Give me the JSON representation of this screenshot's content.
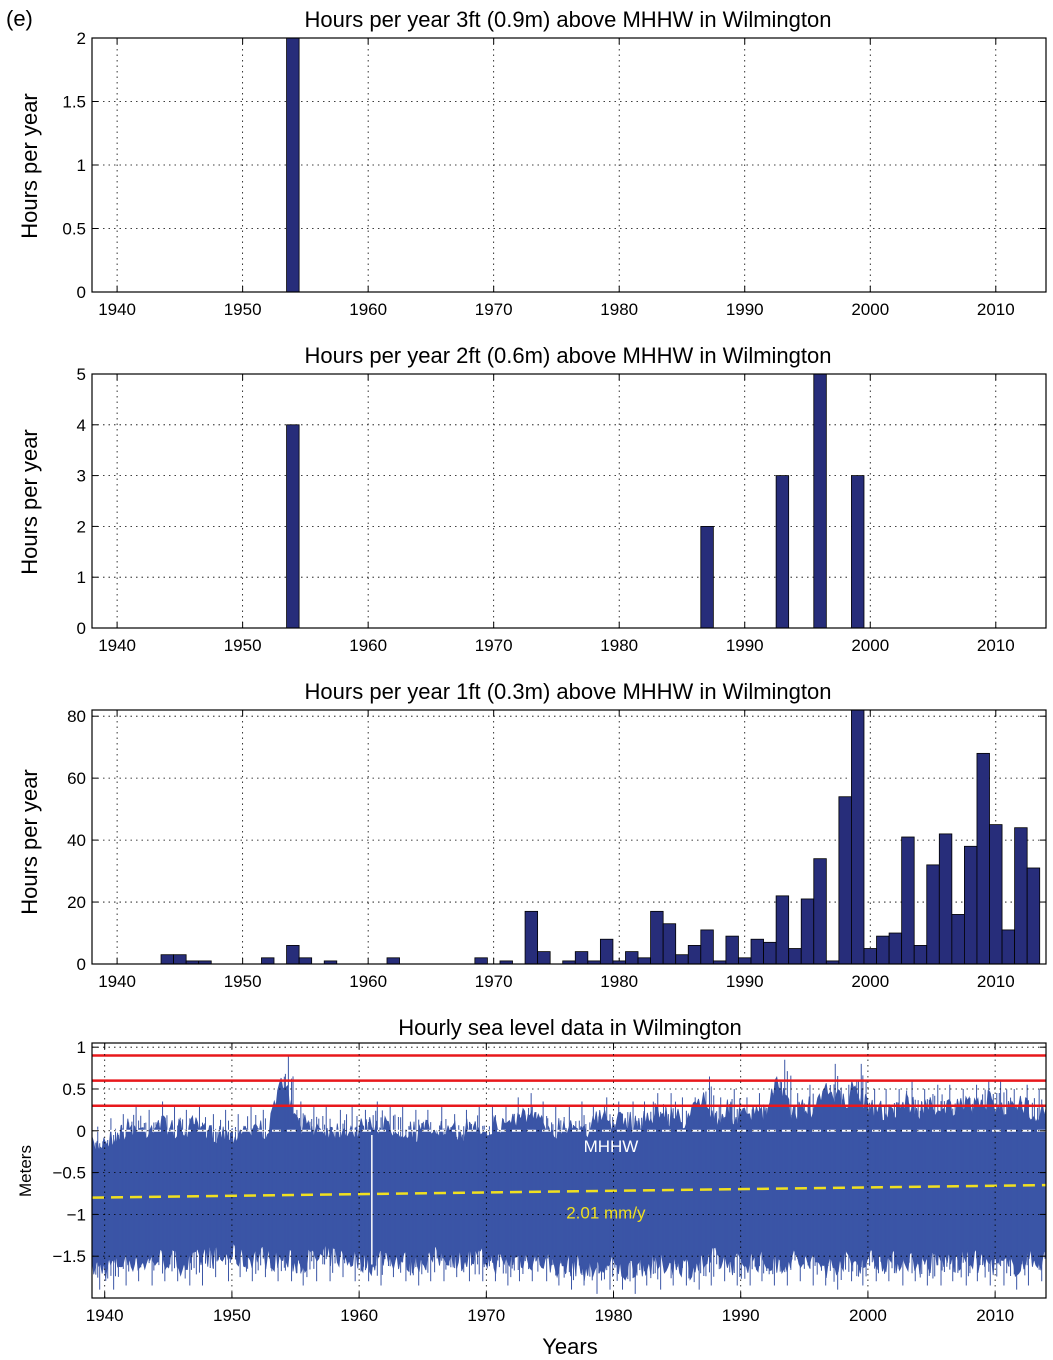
{
  "figure": {
    "panel_label": "(e)",
    "x_tick_labels": [
      "1940",
      "1950",
      "1960",
      "1970",
      "1980",
      "1990",
      "2000",
      "2010"
    ],
    "colors": {
      "bars": "#272d7a",
      "sea_level": "#3a55a6",
      "thresholds": "#e8181c",
      "mhhw_line": "#ffffff",
      "trend_line": "#f0e020"
    }
  },
  "chart_data": [
    {
      "type": "bar",
      "title": "Hours per year 3ft (0.9m) above MHHW in Wilmington",
      "xlabel": "",
      "ylabel": "Hours per year",
      "xlim": [
        1938,
        2014
      ],
      "ylim": [
        0,
        2
      ],
      "y_ticks": [
        0,
        0.5,
        1,
        1.5,
        2
      ],
      "y_tick_labels": [
        "0",
        "0.5",
        "1",
        "1.5",
        "2"
      ],
      "grid": true,
      "x": [
        1954
      ],
      "values": [
        2
      ]
    },
    {
      "type": "bar",
      "title": "Hours per year 2ft (0.6m) above MHHW in Wilmington",
      "xlabel": "",
      "ylabel": "Hours per year",
      "xlim": [
        1938,
        2014
      ],
      "ylim": [
        0,
        5
      ],
      "y_ticks": [
        0,
        1,
        2,
        3,
        4,
        5
      ],
      "y_tick_labels": [
        "0",
        "1",
        "2",
        "3",
        "4",
        "5"
      ],
      "grid": true,
      "x": [
        1954,
        1987,
        1993,
        1996,
        1999
      ],
      "values": [
        4,
        2,
        3,
        5,
        3
      ]
    },
    {
      "type": "bar",
      "title": "Hours per year 1ft (0.3m) above MHHW in Wilmington",
      "xlabel": "",
      "ylabel": "Hours per year",
      "xlim": [
        1938,
        2014
      ],
      "ylim": [
        0,
        82
      ],
      "y_ticks": [
        0,
        20,
        40,
        60,
        80
      ],
      "y_tick_labels": [
        "0",
        "20",
        "40",
        "60",
        "80"
      ],
      "grid": true,
      "x": [
        1944,
        1945,
        1946,
        1947,
        1952,
        1954,
        1955,
        1957,
        1962,
        1969,
        1971,
        1973,
        1974,
        1976,
        1977,
        1978,
        1979,
        1980,
        1981,
        1982,
        1983,
        1984,
        1985,
        1986,
        1987,
        1988,
        1989,
        1990,
        1991,
        1992,
        1993,
        1994,
        1995,
        1996,
        1997,
        1998,
        1999,
        2000,
        2001,
        2002,
        2003,
        2004,
        2005,
        2006,
        2007,
        2008,
        2009,
        2010,
        2011,
        2012,
        2013
      ],
      "values": [
        3,
        3,
        1,
        1,
        2,
        6,
        2,
        1,
        2,
        2,
        1,
        17,
        4,
        1,
        4,
        1,
        8,
        1,
        4,
        2,
        17,
        13,
        3,
        6,
        11,
        1,
        9,
        2,
        8,
        7,
        22,
        5,
        21,
        34,
        1,
        54,
        82,
        5,
        9,
        10,
        41,
        6,
        32,
        42,
        16,
        38,
        68,
        45,
        11,
        44,
        31
      ]
    },
    {
      "type": "area",
      "title": "Hourly sea level data in Wilmington",
      "xlabel": "Years",
      "ylabel": "Meters",
      "xlim": [
        1939,
        2014
      ],
      "ylim": [
        -2,
        1.05
      ],
      "y_ticks": [
        -1.5,
        -1,
        -0.5,
        0,
        0.5,
        1
      ],
      "y_tick_labels": [
        "−1.5",
        "−1",
        "−0.5",
        "0",
        "0.5",
        "1"
      ],
      "grid": true,
      "threshold_lines": [
        0.9,
        0.6,
        0.3
      ],
      "mhhw": {
        "value": 0,
        "label": "MHHW"
      },
      "trend": {
        "label": "2.01 mm/y",
        "y_start": -0.8,
        "y_end": -0.65
      },
      "envelope_annual": {
        "x": [
          1939,
          1940,
          1941,
          1942,
          1943,
          1944,
          1945,
          1946,
          1947,
          1948,
          1949,
          1950,
          1951,
          1952,
          1953,
          1954,
          1955,
          1956,
          1957,
          1958,
          1959,
          1960,
          1961,
          1962,
          1963,
          1964,
          1965,
          1966,
          1967,
          1968,
          1969,
          1970,
          1971,
          1972,
          1973,
          1974,
          1975,
          1976,
          1977,
          1978,
          1979,
          1980,
          1981,
          1982,
          1983,
          1984,
          1985,
          1986,
          1987,
          1988,
          1989,
          1990,
          1991,
          1992,
          1993,
          1994,
          1995,
          1996,
          1997,
          1998,
          1999,
          2000,
          2001,
          2002,
          2003,
          2004,
          2005,
          2006,
          2007,
          2008,
          2009,
          2010,
          2011,
          2012,
          2013
        ],
        "max": [
          0.05,
          0.15,
          0.2,
          0.3,
          0.25,
          0.35,
          0.3,
          0.25,
          0.3,
          0.2,
          0.25,
          0.2,
          0.3,
          0.25,
          0.3,
          0.9,
          0.35,
          0.3,
          0.3,
          0.25,
          0.3,
          0.25,
          0.35,
          0.3,
          0.3,
          0.25,
          0.25,
          0.3,
          0.2,
          0.25,
          0.3,
          0.3,
          0.3,
          0.4,
          0.45,
          0.35,
          0.3,
          0.3,
          0.35,
          0.3,
          0.4,
          0.35,
          0.35,
          0.35,
          0.45,
          0.45,
          0.4,
          0.4,
          0.65,
          0.4,
          0.5,
          0.4,
          0.45,
          0.45,
          0.85,
          0.45,
          0.55,
          0.5,
          0.8,
          0.55,
          0.8,
          0.5,
          0.5,
          0.5,
          0.6,
          0.5,
          0.55,
          0.55,
          0.5,
          0.55,
          0.6,
          0.6,
          0.5,
          0.55,
          0.5
        ],
        "min": [
          -1.9,
          -1.9,
          -1.85,
          -1.8,
          -1.85,
          -1.8,
          -1.8,
          -1.85,
          -1.85,
          -1.75,
          -1.8,
          -1.75,
          -1.8,
          -1.75,
          -1.8,
          -1.8,
          -1.85,
          -1.8,
          -1.8,
          -1.75,
          -1.8,
          -1.8,
          -1.85,
          -1.75,
          -1.8,
          -1.85,
          -1.8,
          -1.8,
          -1.75,
          -1.8,
          -1.8,
          -1.8,
          -1.85,
          -1.8,
          -1.8,
          -1.8,
          -1.85,
          -1.9,
          -1.85,
          -1.95,
          -1.9,
          -1.9,
          -1.95,
          -1.85,
          -1.9,
          -1.85,
          -1.85,
          -1.9,
          -1.85,
          -1.8,
          -1.85,
          -1.85,
          -1.8,
          -1.85,
          -1.85,
          -1.8,
          -1.85,
          -1.85,
          -1.9,
          -1.8,
          -1.85,
          -1.8,
          -1.8,
          -1.85,
          -1.8,
          -1.85,
          -1.85,
          -1.8,
          -1.85,
          -1.8,
          -1.85,
          -1.85,
          -1.9,
          -1.85,
          -1.8
        ]
      }
    }
  ]
}
